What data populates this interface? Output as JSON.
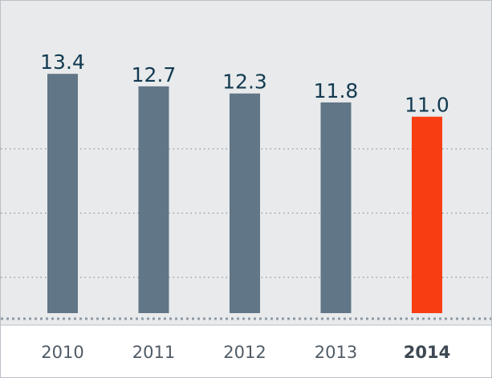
{
  "chart_data": {
    "type": "bar",
    "categories": [
      "2010",
      "2011",
      "2012",
      "2013",
      "2014"
    ],
    "values": [
      13.4,
      12.7,
      12.3,
      11.8,
      11.0
    ],
    "value_labels": [
      "13.4",
      "12.7",
      "12.3",
      "11.8",
      "11.0"
    ],
    "highlight_index": 4,
    "title": "",
    "xlabel": "",
    "ylabel": "",
    "ylim": [
      0,
      14.8
    ],
    "gridlines": [
      2.0,
      5.6,
      9.2
    ],
    "grid": true,
    "legend": "none",
    "colors": {
      "bar": "#617686",
      "highlight_bar": "#f93d13",
      "plot_background": "#e8eaec",
      "value_text": "#123a50",
      "tick_text": "#4f5b66"
    }
  }
}
